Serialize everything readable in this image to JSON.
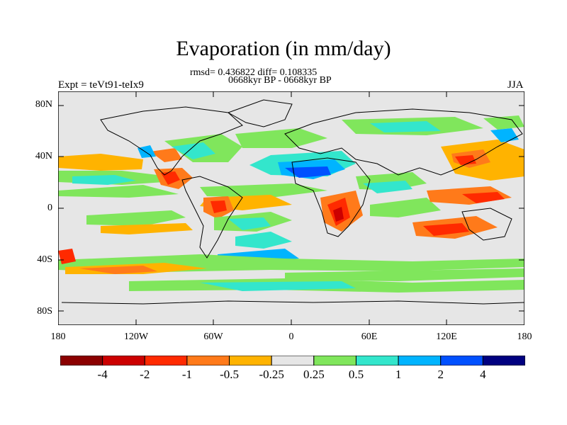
{
  "map": {
    "title": "Evaporation (in mm/day)",
    "stats": "rmsd= 0.436822 diff= 0.108335",
    "period": "0668kyr BP - 0668kyr BP",
    "experiment": "Expt = teVt91-teIx9",
    "season": "JJA",
    "ocean_background": "#e6e6e6",
    "lat_labels": [
      "80N",
      "40N",
      "0",
      "40S",
      "80S"
    ],
    "lon_labels": [
      "180",
      "120W",
      "60W",
      "0",
      "60E",
      "120E",
      "180"
    ]
  },
  "colorbar": {
    "colors": [
      "#8b0000",
      "#cc0000",
      "#ff2a00",
      "#ff7a1a",
      "#ffb300",
      "#e6e6e6",
      "#80e65c",
      "#33e6cc",
      "#00b4ff",
      "#0050ff",
      "#000080"
    ],
    "labels": [
      "-4",
      "-2",
      "-1",
      "-0.5",
      "-0.25",
      "0.25",
      "0.5",
      "1",
      "2",
      "4"
    ]
  }
}
